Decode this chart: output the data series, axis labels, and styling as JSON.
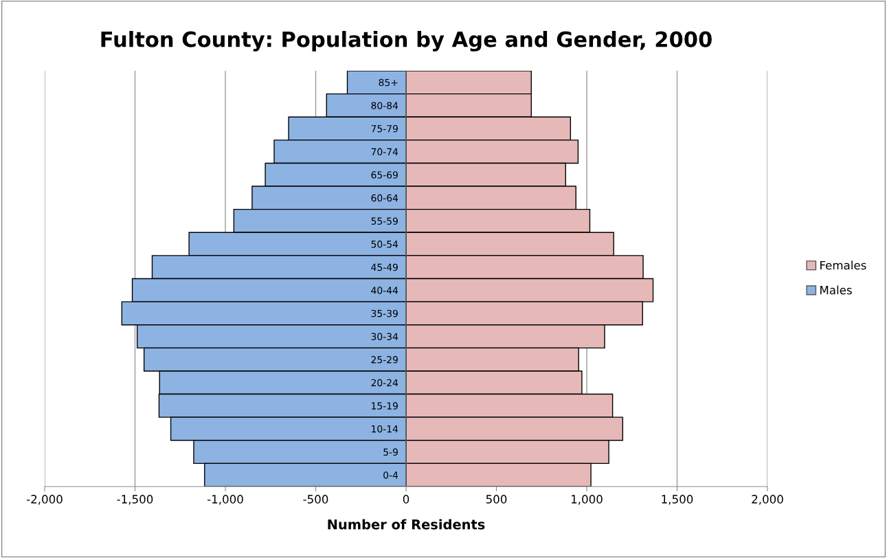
{
  "chart_data": {
    "type": "bar",
    "orientation": "horizontal",
    "title": "Fulton County: Population by Age and Gender, 2000",
    "xlabel": "Number of Residents",
    "categories": [
      "85+",
      "80-84",
      "75-79",
      "70-74",
      "65-69",
      "60-64",
      "55-59",
      "50-54",
      "45-49",
      "40-44",
      "35-39",
      "30-34",
      "25-29",
      "20-24",
      "15-19",
      "10-14",
      "5-9",
      "0-4"
    ],
    "series": [
      {
        "name": "Females",
        "color": "#e6b9b8",
        "values": [
          693,
          693,
          910,
          952,
          883,
          940,
          1017,
          1149,
          1312,
          1367,
          1309,
          1099,
          955,
          973,
          1143,
          1199,
          1122,
          1023
        ]
      },
      {
        "name": "Males",
        "color": "#8db3e2",
        "values": [
          -325,
          -440,
          -650,
          -730,
          -779,
          -852,
          -953,
          -1201,
          -1405,
          -1515,
          -1573,
          -1488,
          -1450,
          -1364,
          -1367,
          -1302,
          -1175,
          -1115
        ]
      }
    ],
    "xlim": [
      -2000,
      2000
    ],
    "xticks": [
      {
        "value": -2000,
        "label": "-2,000"
      },
      {
        "value": -1500,
        "label": "-1,500"
      },
      {
        "value": -1000,
        "label": "-1,000"
      },
      {
        "value": -500,
        "label": "-500"
      },
      0,
      500,
      {
        "value": 1000,
        "label": "1,000"
      },
      {
        "value": 1500,
        "label": "1,500"
      },
      {
        "value": 2000,
        "label": "2,000"
      }
    ],
    "grid": "x",
    "legend": "right",
    "stacked": true
  }
}
